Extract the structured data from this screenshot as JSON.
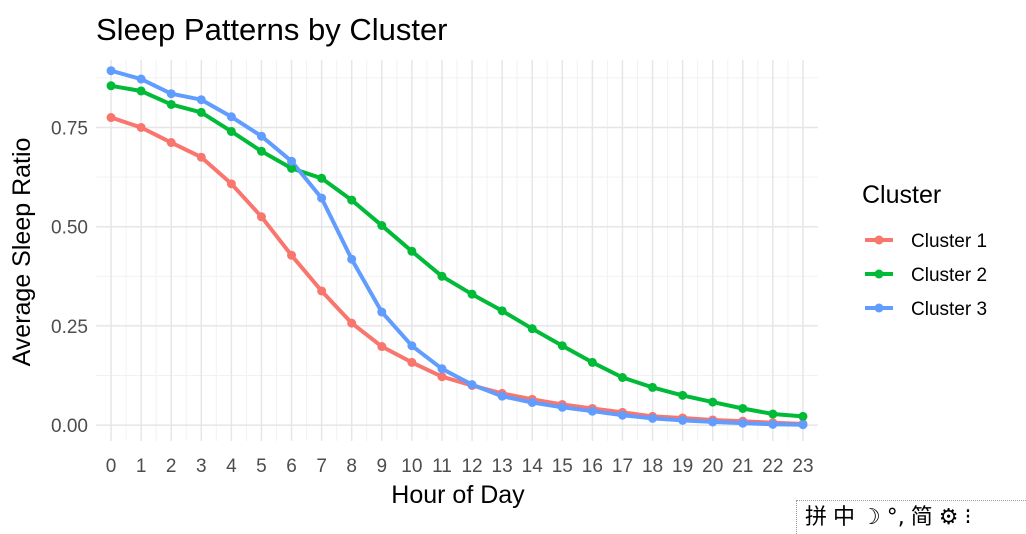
{
  "chart_data": {
    "type": "line",
    "title": "Sleep Patterns by Cluster",
    "xlabel": "Hour of Day",
    "ylabel": "Average Sleep Ratio",
    "x": [
      0,
      1,
      2,
      3,
      4,
      5,
      6,
      7,
      8,
      9,
      10,
      11,
      12,
      13,
      14,
      15,
      16,
      17,
      18,
      19,
      20,
      21,
      22,
      23
    ],
    "xlim": [
      -0.5,
      23.5
    ],
    "ylim": [
      -0.04,
      0.92
    ],
    "yticks": [
      0.0,
      0.25,
      0.5,
      0.75
    ],
    "ytick_labels": [
      "0.00",
      "0.25",
      "0.50",
      "0.75"
    ],
    "grid": true,
    "legend": {
      "title": "Cluster",
      "position": "right"
    },
    "series": [
      {
        "name": "Cluster 1",
        "color": "#F8766D",
        "values": [
          0.775,
          0.75,
          0.712,
          0.675,
          0.608,
          0.525,
          0.428,
          0.338,
          0.257,
          0.198,
          0.158,
          0.122,
          0.1,
          0.08,
          0.065,
          0.052,
          0.042,
          0.032,
          0.022,
          0.018,
          0.013,
          0.01,
          0.006,
          0.003
        ]
      },
      {
        "name": "Cluster 2",
        "color": "#00BA38",
        "values": [
          0.855,
          0.842,
          0.808,
          0.788,
          0.74,
          0.69,
          0.647,
          0.622,
          0.567,
          0.503,
          0.438,
          0.375,
          0.33,
          0.288,
          0.243,
          0.2,
          0.158,
          0.12,
          0.095,
          0.075,
          0.058,
          0.042,
          0.028,
          0.022
        ]
      },
      {
        "name": "Cluster 3",
        "color": "#619CFF",
        "values": [
          0.893,
          0.872,
          0.835,
          0.82,
          0.777,
          0.728,
          0.665,
          0.572,
          0.418,
          0.285,
          0.2,
          0.142,
          0.102,
          0.073,
          0.057,
          0.045,
          0.035,
          0.025,
          0.017,
          0.012,
          0.008,
          0.005,
          0.002,
          0.001
        ]
      }
    ]
  },
  "ime_toolbar": {
    "items": [
      {
        "name": "grid-icon",
        "label": "拼"
      },
      {
        "name": "mode-chinese",
        "label": "中"
      },
      {
        "name": "moon-icon",
        "label": "☽"
      },
      {
        "name": "punctuation-icon",
        "label": "°,"
      },
      {
        "name": "simplified-icon",
        "label": "简"
      },
      {
        "name": "settings-icon",
        "label": "⚙"
      },
      {
        "name": "more-icon",
        "label": "⁝"
      }
    ]
  }
}
